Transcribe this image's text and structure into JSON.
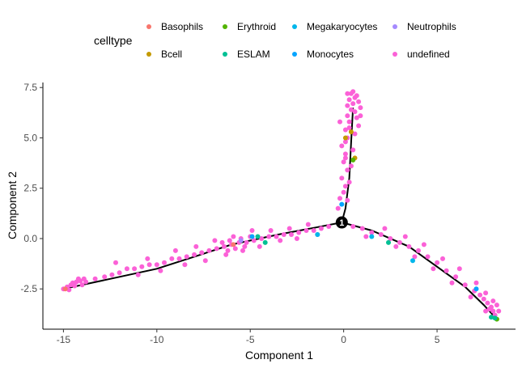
{
  "chart_data": {
    "type": "scatter",
    "title": "",
    "xlabel": "Component 1",
    "ylabel": "Component 2",
    "xlim": [
      -16.1,
      9.2
    ],
    "ylim": [
      -4.5,
      7.75
    ],
    "xticks": [
      -15,
      -10,
      -5,
      0,
      5
    ],
    "yticks": [
      -2.5,
      0.0,
      2.5,
      5.0,
      7.5
    ],
    "ytick_labels": [
      "-2.5",
      "0.0",
      "2.5",
      "5.0",
      "7.5"
    ],
    "grid": false,
    "legend": {
      "title": "celltype",
      "placement": "top",
      "entries": [
        {
          "name": "Basophils",
          "color": "#F8766D"
        },
        {
          "name": "Bcell",
          "color": "#C49A00"
        },
        {
          "name": "Erythroid",
          "color": "#53B400"
        },
        {
          "name": "ESLAM",
          "color": "#00C094"
        },
        {
          "name": "Megakaryocytes",
          "color": "#00B6EB"
        },
        {
          "name": "Monocytes",
          "color": "#06A4FF"
        },
        {
          "name": "Neutrophils",
          "color": "#A58AFF"
        },
        {
          "name": "undefined",
          "color": "#FB61D7"
        }
      ]
    },
    "trajectory": {
      "branch_point": {
        "x": -0.1,
        "y": 0.8,
        "label": "1"
      },
      "branches": [
        [
          [
            -0.1,
            0.8
          ],
          [
            -1.5,
            0.55
          ],
          [
            -3.5,
            0.2
          ],
          [
            -6,
            -0.3
          ],
          [
            -8,
            -0.9
          ],
          [
            -10,
            -1.5
          ],
          [
            -12.5,
            -2.0
          ],
          [
            -15,
            -2.5
          ]
        ],
        [
          [
            -0.1,
            0.8
          ],
          [
            0.1,
            1.5
          ],
          [
            0.3,
            3.0
          ],
          [
            0.4,
            4.8
          ],
          [
            0.5,
            6.5
          ]
        ],
        [
          [
            -0.1,
            0.8
          ],
          [
            1.5,
            0.4
          ],
          [
            3.5,
            -0.4
          ],
          [
            5,
            -1.4
          ],
          [
            6.5,
            -2.4
          ],
          [
            7.5,
            -3.3
          ],
          [
            8.2,
            -4.0
          ]
        ]
      ]
    },
    "series": [
      {
        "name": "undefined",
        "color": "#FB61D7",
        "points": [
          [
            -15.0,
            -2.5
          ],
          [
            -14.8,
            -2.4
          ],
          [
            -14.6,
            -2.3
          ],
          [
            -14.5,
            -2.2
          ],
          [
            -14.3,
            -2.15
          ],
          [
            -14.1,
            -2.1
          ],
          [
            -13.9,
            -2.0
          ],
          [
            -14.7,
            -2.55
          ],
          [
            -14.4,
            -2.35
          ],
          [
            -14.2,
            -2.0
          ],
          [
            -14.0,
            -2.3
          ],
          [
            -13.8,
            -2.15
          ],
          [
            -13.3,
            -2.0
          ],
          [
            -12.8,
            -1.9
          ],
          [
            -12.4,
            -1.8
          ],
          [
            -12.0,
            -1.7
          ],
          [
            -11.6,
            -1.5
          ],
          [
            -11.2,
            -1.5
          ],
          [
            -10.8,
            -1.4
          ],
          [
            -10.4,
            -1.3
          ],
          [
            -10.0,
            -1.3
          ],
          [
            -9.6,
            -1.2
          ],
          [
            -9.2,
            -1.0
          ],
          [
            -8.8,
            -1.0
          ],
          [
            -8.4,
            -0.9
          ],
          [
            -8.0,
            -0.8
          ],
          [
            -7.6,
            -0.7
          ],
          [
            -7.2,
            -0.6
          ],
          [
            -6.8,
            -0.5
          ],
          [
            -6.4,
            -0.4
          ],
          [
            -6.0,
            -0.3
          ],
          [
            -5.6,
            -0.2
          ],
          [
            -5.2,
            -0.2
          ],
          [
            -4.8,
            -0.1
          ],
          [
            -4.4,
            0.0
          ],
          [
            -4.0,
            0.1
          ],
          [
            -3.6,
            0.1
          ],
          [
            -3.2,
            0.2
          ],
          [
            -2.8,
            0.2
          ],
          [
            -2.4,
            0.3
          ],
          [
            -2.0,
            0.4
          ],
          [
            -1.6,
            0.4
          ],
          [
            -1.2,
            0.5
          ],
          [
            -0.8,
            0.6
          ],
          [
            -12.2,
            -1.2
          ],
          [
            -11.0,
            -1.8
          ],
          [
            -10.5,
            -1.0
          ],
          [
            -9.8,
            -1.6
          ],
          [
            -9.0,
            -0.6
          ],
          [
            -8.5,
            -1.3
          ],
          [
            -7.9,
            -0.4
          ],
          [
            -7.4,
            -1.1
          ],
          [
            -6.9,
            -0.1
          ],
          [
            -6.3,
            -0.8
          ],
          [
            -5.9,
            0.1
          ],
          [
            -5.4,
            -0.6
          ],
          [
            -4.9,
            0.4
          ],
          [
            -4.5,
            -0.4
          ],
          [
            -3.9,
            0.4
          ],
          [
            -3.4,
            -0.1
          ],
          [
            -2.9,
            0.5
          ],
          [
            -2.5,
            0.0
          ],
          [
            -1.9,
            0.7
          ],
          [
            -1.4,
            0.2
          ],
          [
            -6.5,
            -0.2
          ],
          [
            -6.1,
            -0.1
          ],
          [
            -5.8,
            -0.5
          ],
          [
            -5.5,
            0.0
          ],
          [
            -5.3,
            -0.4
          ],
          [
            -5.0,
            0.1
          ],
          [
            -6.2,
            -0.6
          ],
          [
            -0.3,
            1.5
          ],
          [
            -0.2,
            2.0
          ],
          [
            0.0,
            2.3
          ],
          [
            0.1,
            2.6
          ],
          [
            -0.1,
            3.0
          ],
          [
            0.2,
            3.4
          ],
          [
            0.0,
            3.8
          ],
          [
            0.1,
            4.2
          ],
          [
            -0.1,
            4.6
          ],
          [
            0.2,
            5.0
          ],
          [
            0.1,
            5.4
          ],
          [
            0.3,
            5.8
          ],
          [
            0.2,
            6.1
          ],
          [
            0.4,
            6.4
          ],
          [
            0.5,
            6.7
          ],
          [
            0.3,
            6.9
          ],
          [
            0.6,
            7.0
          ],
          [
            0.4,
            7.2
          ],
          [
            0.7,
            7.1
          ],
          [
            0.8,
            6.8
          ],
          [
            0.9,
            6.5
          ],
          [
            0.2,
            6.6
          ],
          [
            0.6,
            6.3
          ],
          [
            0.1,
            4.0
          ],
          [
            0.3,
            2.8
          ],
          [
            0.2,
            1.9
          ],
          [
            0.8,
            5.6
          ],
          [
            0.6,
            5.2
          ],
          [
            0.5,
            4.4
          ],
          [
            0.4,
            3.6
          ],
          [
            0.1,
            4.8
          ],
          [
            0.7,
            6.0
          ],
          [
            0.3,
            5.5
          ],
          [
            -0.2,
            5.8
          ],
          [
            0.9,
            6.1
          ],
          [
            0.5,
            7.3
          ],
          [
            0.2,
            7.2
          ],
          [
            0.5,
            0.6
          ],
          [
            1.0,
            0.5
          ],
          [
            1.5,
            0.3
          ],
          [
            2.0,
            0.2
          ],
          [
            2.5,
            0.0
          ],
          [
            3.0,
            -0.2
          ],
          [
            3.5,
            -0.4
          ],
          [
            4.0,
            -0.6
          ],
          [
            4.5,
            -0.9
          ],
          [
            5.0,
            -1.2
          ],
          [
            5.5,
            -1.6
          ],
          [
            6.0,
            -1.9
          ],
          [
            6.5,
            -2.3
          ],
          [
            7.0,
            -2.6
          ],
          [
            7.3,
            -2.8
          ],
          [
            7.5,
            -3.0
          ],
          [
            7.7,
            -3.2
          ],
          [
            7.9,
            -3.4
          ],
          [
            8.0,
            -3.6
          ],
          [
            8.1,
            -3.8
          ],
          [
            7.8,
            -3.5
          ],
          [
            8.2,
            -3.3
          ],
          [
            7.6,
            -2.7
          ],
          [
            8.0,
            -3.1
          ],
          [
            1.2,
            0.1
          ],
          [
            2.2,
            0.5
          ],
          [
            2.8,
            -0.4
          ],
          [
            3.3,
            0.1
          ],
          [
            3.8,
            -0.9
          ],
          [
            4.3,
            -0.3
          ],
          [
            4.8,
            -1.5
          ],
          [
            5.3,
            -1.0
          ],
          [
            5.8,
            -2.2
          ],
          [
            6.2,
            -1.5
          ],
          [
            6.8,
            -2.9
          ],
          [
            7.1,
            -2.2
          ],
          [
            7.6,
            -3.6
          ],
          [
            8.3,
            -3.6
          ]
        ]
      },
      {
        "name": "Basophils",
        "color": "#F8766D",
        "points": [
          [
            -14.9,
            -2.5
          ],
          [
            -5.9,
            -0.3
          ]
        ]
      },
      {
        "name": "Bcell",
        "color": "#C49A00",
        "points": [
          [
            0.1,
            5.0
          ],
          [
            0.6,
            4.0
          ],
          [
            0.4,
            5.3
          ]
        ]
      },
      {
        "name": "Erythroid",
        "color": "#53B400",
        "points": [
          [
            0.5,
            3.9
          ],
          [
            8.2,
            -4.0
          ]
        ]
      },
      {
        "name": "ESLAM",
        "color": "#00C094",
        "points": [
          [
            -4.6,
            0.1
          ],
          [
            -4.2,
            -0.2
          ],
          [
            2.4,
            -0.2
          ],
          [
            7.9,
            -3.9
          ],
          [
            8.1,
            -3.95
          ]
        ]
      },
      {
        "name": "Megakaryocytes",
        "color": "#00B6EB",
        "points": [
          [
            -1.4,
            0.2
          ],
          [
            1.5,
            0.1
          ],
          [
            3.7,
            -1.1
          ]
        ]
      },
      {
        "name": "Monocytes",
        "color": "#06A4FF",
        "points": [
          [
            -4.9,
            0.1
          ],
          [
            7.1,
            -2.5
          ],
          [
            -0.1,
            1.7
          ]
        ]
      },
      {
        "name": "Neutrophils",
        "color": "#A58AFF",
        "points": [
          [
            -5.5,
            -0.1
          ]
        ]
      }
    ]
  }
}
